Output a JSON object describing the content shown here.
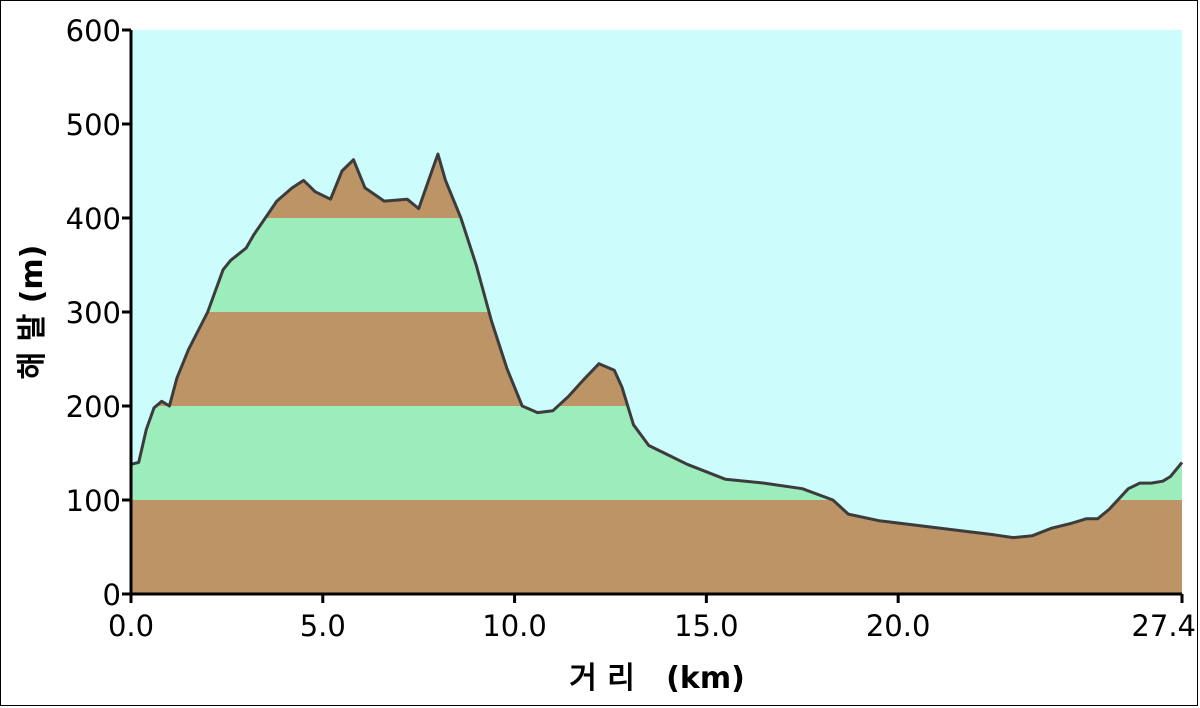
{
  "chart_data": {
    "type": "area",
    "xlabel": "거 리   (km)",
    "ylabel": "해 발  (m)",
    "xlim": [
      0,
      27.4
    ],
    "ylim": [
      0,
      600
    ],
    "x_ticks": [
      0,
      5,
      10,
      15,
      20,
      27.4
    ],
    "x_tick_labels": [
      "0.0",
      "5.0",
      "10.0",
      "15.0",
      "20.0",
      "27.4"
    ],
    "y_ticks": [
      0,
      100,
      200,
      300,
      400,
      500,
      600
    ],
    "y_tick_labels": [
      "0",
      "100",
      "200",
      "300",
      "400",
      "500",
      "600"
    ],
    "band_size": 100,
    "grid": false,
    "colors": {
      "sky": "#ccfcfc",
      "band_brown": "#bc9466",
      "band_green": "#9cecbc",
      "outline": "#3c3c3c",
      "axis": "#000000"
    },
    "x": [
      0,
      0.2,
      0.4,
      0.6,
      0.8,
      1.0,
      1.2,
      1.5,
      2.0,
      2.4,
      2.6,
      3.0,
      3.2,
      3.5,
      3.8,
      4.2,
      4.5,
      4.8,
      5.2,
      5.5,
      5.8,
      6.1,
      6.6,
      7.2,
      7.5,
      7.8,
      8.0,
      8.2,
      8.6,
      9.0,
      9.4,
      9.8,
      10.2,
      10.6,
      11.0,
      11.4,
      11.8,
      12.2,
      12.6,
      12.8,
      13.1,
      13.5,
      14.0,
      14.5,
      15.0,
      15.5,
      16.5,
      17.5,
      18.3,
      18.7,
      19.5,
      20.5,
      21.5,
      22.5,
      23.0,
      23.5,
      24.0,
      24.5,
      24.9,
      25.2,
      25.5,
      26.0,
      26.3,
      26.6,
      26.9,
      27.1,
      27.4
    ],
    "elevation": [
      138,
      140,
      175,
      198,
      205,
      200,
      230,
      260,
      300,
      345,
      355,
      368,
      382,
      400,
      418,
      432,
      440,
      428,
      420,
      450,
      462,
      432,
      418,
      420,
      410,
      445,
      468,
      440,
      400,
      350,
      290,
      240,
      200,
      193,
      195,
      210,
      228,
      245,
      238,
      220,
      180,
      158,
      148,
      138,
      130,
      122,
      118,
      112,
      100,
      85,
      78,
      73,
      68,
      63,
      60,
      62,
      70,
      75,
      80,
      80,
      90,
      112,
      118,
      118,
      120,
      125,
      140
    ]
  }
}
